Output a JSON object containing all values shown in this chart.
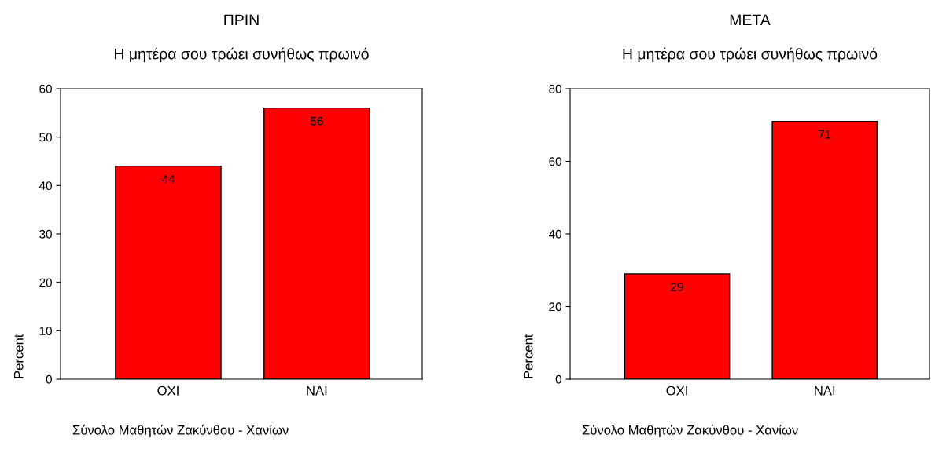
{
  "chart_data": [
    {
      "type": "bar",
      "title": "ΠΡΙΝ",
      "subtitle": "Η μητέρα σου τρώει συνήθως πρωινό",
      "ylabel": "Percent",
      "categories": [
        "OXI",
        "NAI"
      ],
      "values": [
        44,
        56
      ],
      "color": "#ff0000",
      "ylim": [
        0,
        60
      ],
      "yticks": [
        0,
        10,
        20,
        30,
        40,
        50,
        60
      ],
      "data_labels": true,
      "grid": false,
      "legend": false,
      "annotations": [
        "Σύνολο Μαθητών Ζακύνθου - Χανίων"
      ]
    },
    {
      "type": "bar",
      "title": "ΜΕΤΑ",
      "subtitle": "Η μητέρα σου τρώει συνήθως πρωινό",
      "ylabel": "Percent",
      "categories": [
        "OXI",
        "NAI"
      ],
      "values": [
        29,
        71
      ],
      "color": "#ff0000",
      "ylim": [
        0,
        80
      ],
      "yticks": [
        0,
        20,
        40,
        60,
        80
      ],
      "data_labels": true,
      "grid": false,
      "legend": false,
      "annotations": [
        "Σύνολο Μαθητών Ζακύνθου - Χανίων"
      ]
    }
  ]
}
